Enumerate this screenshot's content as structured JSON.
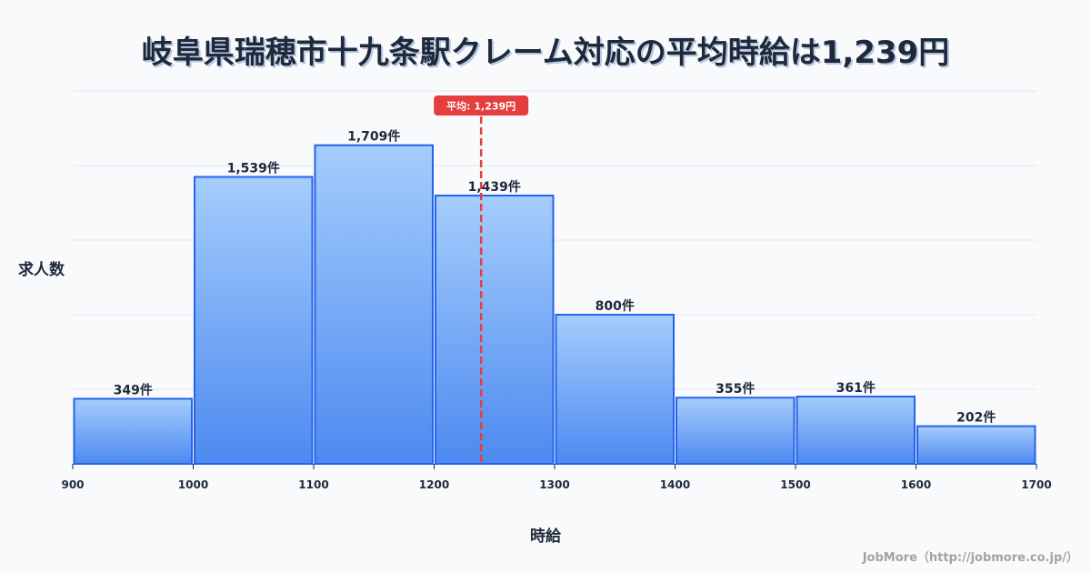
{
  "title": "岐阜県瑞穂市十九条駅クレーム対応の平均時給は1,239円",
  "ylabel": "求人数",
  "xlabel": "時給",
  "credit": "JobMore（http://jobmore.co.jp/）",
  "average": {
    "value": 1239,
    "label": "平均: 1,239円",
    "color": "#e53e3e"
  },
  "colors": {
    "bar_top": "#a5cdfc",
    "bar_bottom": "#4d8af0",
    "bar_stroke": "#2563eb",
    "grid": "#e2e8f0",
    "text": "#1e293b"
  },
  "chart_data": {
    "type": "bar",
    "title": "岐阜県瑞穂市十九条駅クレーム対応の平均時給は1,239円",
    "xlabel": "時給",
    "ylabel": "求人数",
    "bins": [
      [
        900,
        1000
      ],
      [
        1000,
        1100
      ],
      [
        1100,
        1200
      ],
      [
        1200,
        1300
      ],
      [
        1300,
        1400
      ],
      [
        1400,
        1500
      ],
      [
        1500,
        1600
      ],
      [
        1600,
        1700
      ]
    ],
    "categories": [
      "900-1000",
      "1000-1100",
      "1100-1200",
      "1200-1300",
      "1300-1400",
      "1400-1500",
      "1500-1600",
      "1600-1700"
    ],
    "values": [
      349,
      1539,
      1709,
      1439,
      800,
      355,
      361,
      202
    ],
    "value_labels": [
      "349件",
      "1,539件",
      "1,709件",
      "1,439件",
      "800件",
      "355件",
      "361件",
      "202件"
    ],
    "x_ticks": [
      "900",
      "1000",
      "1100",
      "1200",
      "1300",
      "1400",
      "1500",
      "1600",
      "1700"
    ],
    "xlim": [
      900,
      1700
    ],
    "ylim": [
      0,
      2000
    ],
    "grid_y": [
      0,
      400,
      800,
      1200,
      1600,
      2000
    ],
    "grid": true,
    "mean_line": 1239,
    "mean_label": "平均: 1,239円"
  }
}
